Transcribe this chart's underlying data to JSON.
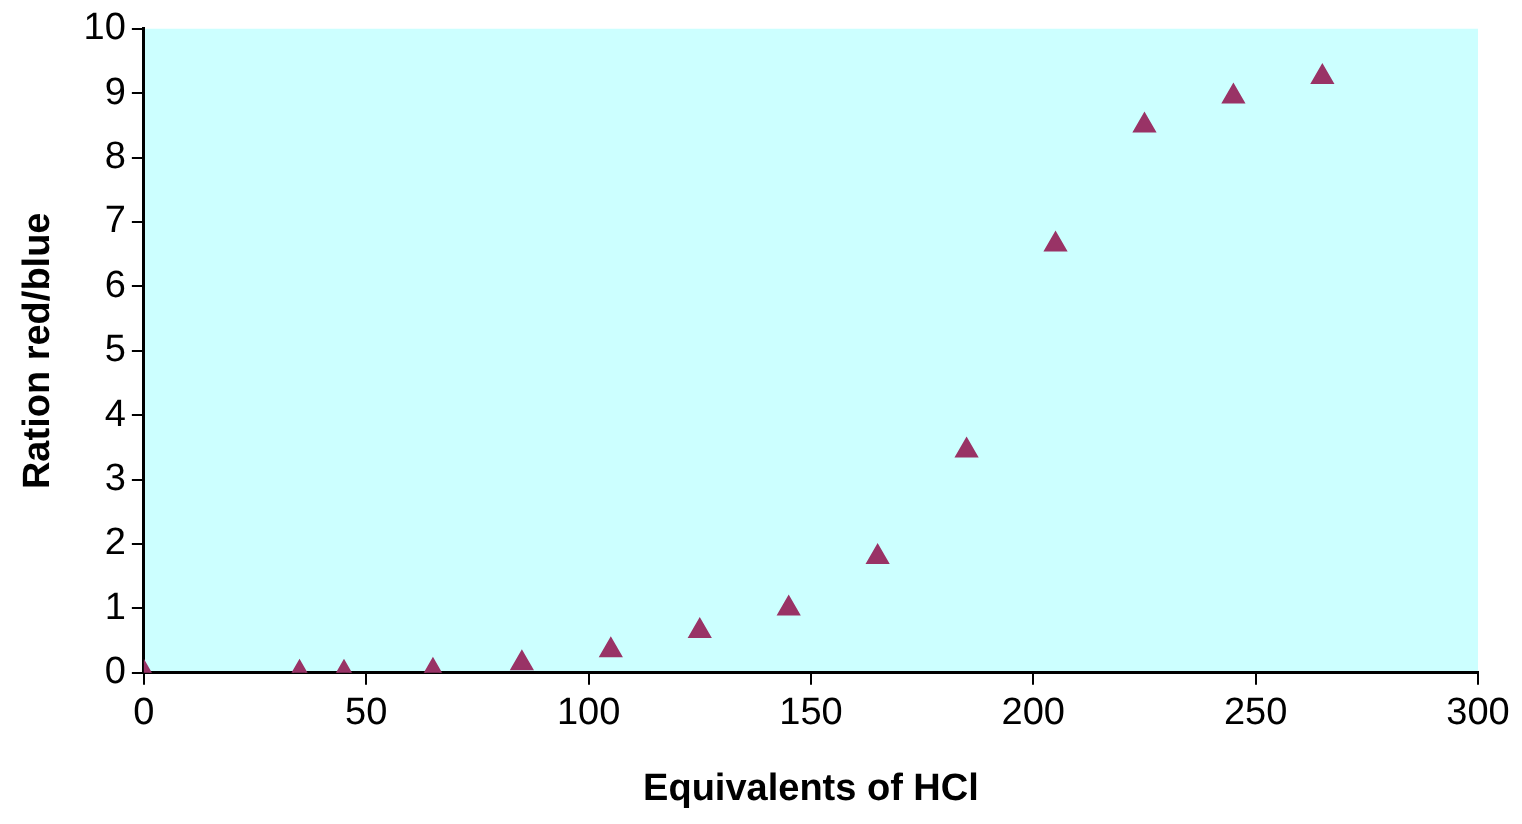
{
  "chart_data": {
    "type": "scatter",
    "xlabel": "Equivalents of HCl",
    "ylabel": "Ration red/blue",
    "x": [
      0,
      35,
      45,
      65,
      85,
      105,
      125,
      145,
      165,
      185,
      205,
      225,
      245,
      265
    ],
    "values": [
      0,
      0,
      0,
      0.03,
      0.15,
      0.35,
      0.65,
      1.0,
      1.8,
      3.45,
      6.65,
      8.5,
      8.95,
      9.25
    ],
    "color": "#993366",
    "marker": "triangle",
    "xlim": [
      0,
      300
    ],
    "xticks": [
      0,
      50,
      100,
      150,
      200,
      250,
      300
    ],
    "ylim": [
      0,
      10
    ],
    "yticks": [
      0,
      1,
      2,
      3,
      4,
      5,
      6,
      7,
      8,
      9,
      10
    ],
    "grid": false,
    "legend": false
  }
}
